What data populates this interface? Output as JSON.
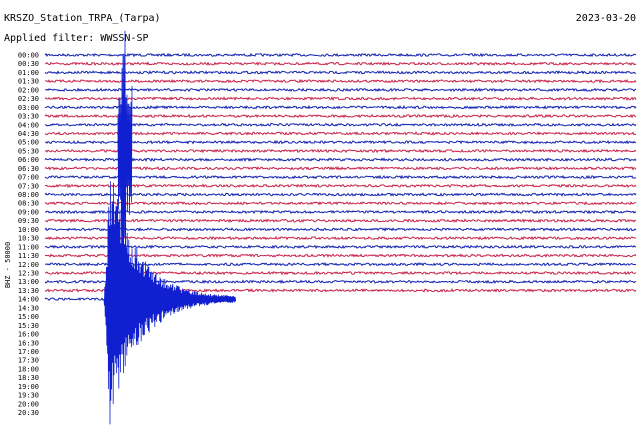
{
  "header": {
    "station": "KRSZO_Station_TRPA_(Tarpa)",
    "date": "2023-03-20",
    "filter": "Applied filter: WWSSN-SP"
  },
  "side_label": "BHZ - 50000",
  "times": [
    "00:00",
    "00:30",
    "01:00",
    "01:30",
    "02:00",
    "02:30",
    "03:00",
    "03:30",
    "04:00",
    "04:30",
    "05:00",
    "05:30",
    "06:00",
    "06:30",
    "07:00",
    "07:30",
    "08:00",
    "08:30",
    "09:00",
    "09:30",
    "10:00",
    "10:30",
    "11:00",
    "11:30",
    "12:00",
    "12:30",
    "13:00",
    "13:30",
    "14:00",
    "14:30",
    "15:00",
    "15:30",
    "16:00",
    "16:30",
    "17:00",
    "17:30",
    "18:00",
    "18:30",
    "19:00",
    "19:30",
    "20:00",
    "20:30"
  ]
}
